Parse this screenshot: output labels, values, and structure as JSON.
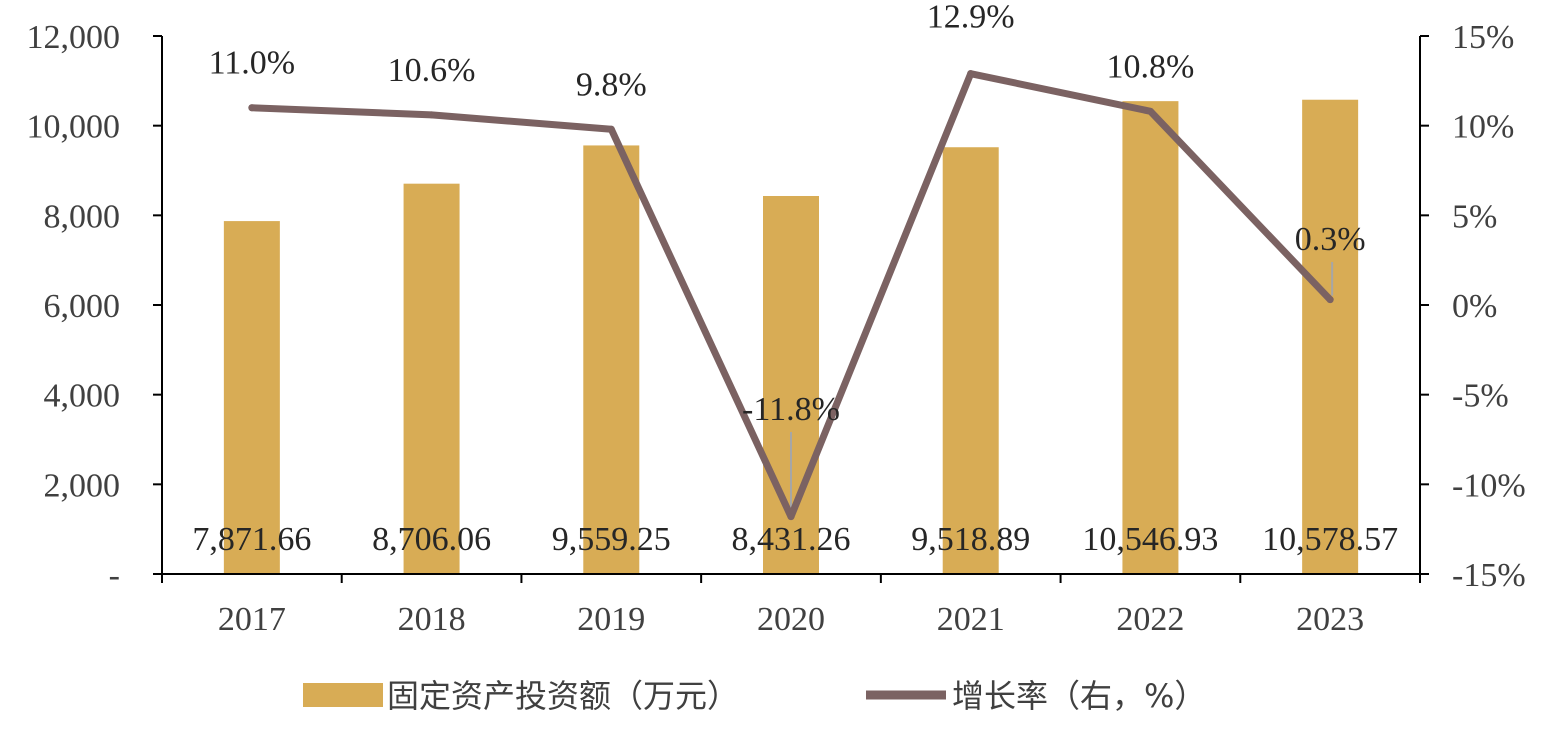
{
  "chart_data": {
    "type": "bar+line",
    "categories": [
      "2017",
      "2018",
      "2019",
      "2020",
      "2021",
      "2022",
      "2023"
    ],
    "series": [
      {
        "name": "固定资产投资额（万元）",
        "type": "bar",
        "axis": "left",
        "color": "#D8AC55",
        "values": [
          7871.66,
          8706.06,
          9559.25,
          8431.26,
          9518.89,
          10546.93,
          10578.57
        ],
        "labels": [
          "7,871.66",
          "8,706.06",
          "9,559.25",
          "8,431.26",
          "9,518.89",
          "10,546.93",
          "10,578.57"
        ]
      },
      {
        "name": "增长率（右，%）",
        "type": "line",
        "axis": "right",
        "color": "#7B6262",
        "values": [
          11.0,
          10.6,
          9.8,
          -11.8,
          12.9,
          10.8,
          0.3
        ],
        "labels": [
          "11.0%",
          "10.6%",
          "9.8%",
          "-11.8%",
          "12.9%",
          "10.8%",
          "0.3%"
        ]
      }
    ],
    "y_left": {
      "range": [
        0,
        12000
      ],
      "ticks": [
        0,
        2000,
        4000,
        6000,
        8000,
        10000,
        12000
      ],
      "tick_labels": [
        "-",
        "2,000",
        "4,000",
        "6,000",
        "8,000",
        "10,000",
        "12,000"
      ]
    },
    "y_right": {
      "range": [
        -15,
        15
      ],
      "ticks": [
        -15,
        -10,
        -5,
        0,
        5,
        10,
        15
      ],
      "tick_labels": [
        "-15%",
        "-10%",
        "-5%",
        "0%",
        "5%",
        "10%",
        "15%"
      ]
    },
    "legend": {
      "position": "bottom",
      "items": [
        "固定资产投资额（万元）",
        "增长率（右，%）"
      ]
    },
    "grid": false
  }
}
